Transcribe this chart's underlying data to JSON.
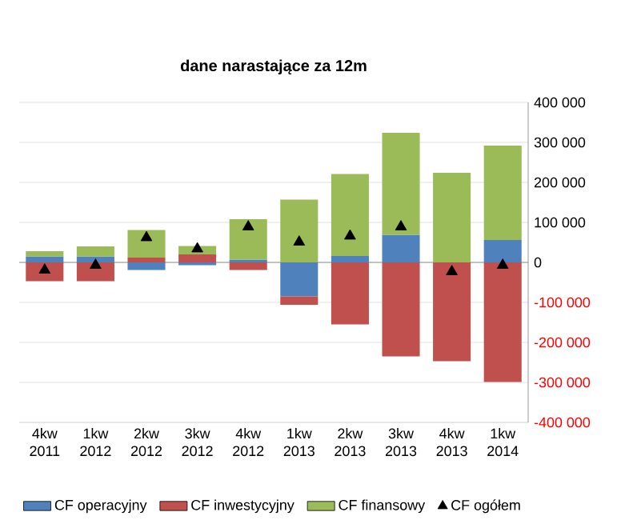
{
  "chart_data": {
    "type": "bar",
    "stacked": true,
    "title": "dane narastające za 12m",
    "categories": [
      "4kw 2011",
      "1kw 2012",
      "2kw 2012",
      "3kw 2012",
      "4kw 2012",
      "1kw 2013",
      "2kw 2013",
      "3kw 2013",
      "4kw 2013",
      "1kw 2014"
    ],
    "series": [
      {
        "name": "CF operacyjny",
        "color": "#4f81bd",
        "values": [
          15000,
          15000,
          -19000,
          -7000,
          7000,
          -85000,
          16000,
          69000,
          0,
          56000
        ]
      },
      {
        "name": "CF inwestycyjny",
        "color": "#c0504d",
        "values": [
          -47000,
          -47000,
          12000,
          20000,
          -19000,
          -21000,
          -155000,
          -235000,
          -247000,
          -299000
        ]
      },
      {
        "name": "CF finansowy",
        "color": "#9bbb59",
        "values": [
          13000,
          25000,
          69000,
          21000,
          101000,
          157000,
          205000,
          255000,
          224000,
          236000
        ]
      },
      {
        "name": "CF ogółem",
        "type": "scatter",
        "marker": "triangle",
        "color": "#000000",
        "values": [
          -19000,
          -7000,
          62000,
          34000,
          89000,
          51000,
          66000,
          89000,
          -23000,
          -7000
        ]
      }
    ],
    "ylim": [
      -400000,
      400000
    ],
    "yticks": [
      {
        "value": -400000,
        "label": "-400 000"
      },
      {
        "value": -300000,
        "label": "-300 000"
      },
      {
        "value": -200000,
        "label": "-200 000"
      },
      {
        "value": -100000,
        "label": "-100 000"
      },
      0,
      {
        "value": 100000,
        "label": "100 000"
      },
      {
        "value": 200000,
        "label": "200 000"
      },
      {
        "value": 300000,
        "label": "300 000"
      },
      {
        "value": 400000,
        "label": "400 000"
      }
    ],
    "grid": "y",
    "legend": "bottom"
  }
}
